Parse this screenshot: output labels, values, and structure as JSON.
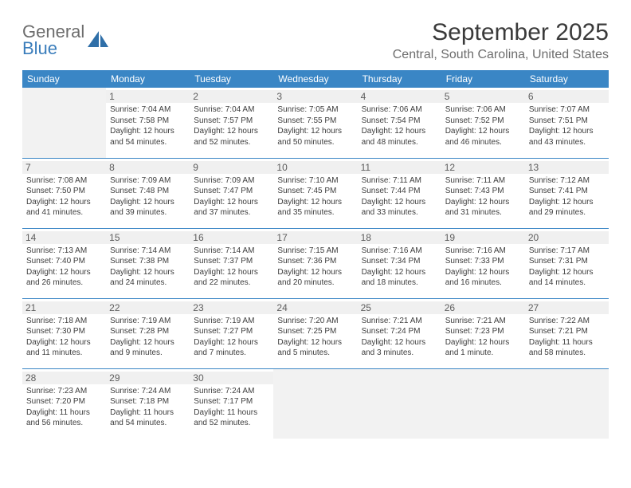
{
  "brand": {
    "word1": "General",
    "word2": "Blue"
  },
  "title": "September 2025",
  "location": "Central, South Carolina, United States",
  "colors": {
    "header_bg": "#3a86c5",
    "header_text": "#ffffff",
    "border": "#3a86c5",
    "daynum_bg": "#f0f0f0",
    "empty_bg": "#f2f2f2",
    "brand_gray": "#6d6d6d",
    "brand_blue": "#3a7dbb"
  },
  "weekdays": [
    "Sunday",
    "Monday",
    "Tuesday",
    "Wednesday",
    "Thursday",
    "Friday",
    "Saturday"
  ],
  "start_offset": 1,
  "days": [
    {
      "n": "1",
      "sr": "7:04 AM",
      "ss": "7:58 PM",
      "dl": "12 hours and 54 minutes."
    },
    {
      "n": "2",
      "sr": "7:04 AM",
      "ss": "7:57 PM",
      "dl": "12 hours and 52 minutes."
    },
    {
      "n": "3",
      "sr": "7:05 AM",
      "ss": "7:55 PM",
      "dl": "12 hours and 50 minutes."
    },
    {
      "n": "4",
      "sr": "7:06 AM",
      "ss": "7:54 PM",
      "dl": "12 hours and 48 minutes."
    },
    {
      "n": "5",
      "sr": "7:06 AM",
      "ss": "7:52 PM",
      "dl": "12 hours and 46 minutes."
    },
    {
      "n": "6",
      "sr": "7:07 AM",
      "ss": "7:51 PM",
      "dl": "12 hours and 43 minutes."
    },
    {
      "n": "7",
      "sr": "7:08 AM",
      "ss": "7:50 PM",
      "dl": "12 hours and 41 minutes."
    },
    {
      "n": "8",
      "sr": "7:09 AM",
      "ss": "7:48 PM",
      "dl": "12 hours and 39 minutes."
    },
    {
      "n": "9",
      "sr": "7:09 AM",
      "ss": "7:47 PM",
      "dl": "12 hours and 37 minutes."
    },
    {
      "n": "10",
      "sr": "7:10 AM",
      "ss": "7:45 PM",
      "dl": "12 hours and 35 minutes."
    },
    {
      "n": "11",
      "sr": "7:11 AM",
      "ss": "7:44 PM",
      "dl": "12 hours and 33 minutes."
    },
    {
      "n": "12",
      "sr": "7:11 AM",
      "ss": "7:43 PM",
      "dl": "12 hours and 31 minutes."
    },
    {
      "n": "13",
      "sr": "7:12 AM",
      "ss": "7:41 PM",
      "dl": "12 hours and 29 minutes."
    },
    {
      "n": "14",
      "sr": "7:13 AM",
      "ss": "7:40 PM",
      "dl": "12 hours and 26 minutes."
    },
    {
      "n": "15",
      "sr": "7:14 AM",
      "ss": "7:38 PM",
      "dl": "12 hours and 24 minutes."
    },
    {
      "n": "16",
      "sr": "7:14 AM",
      "ss": "7:37 PM",
      "dl": "12 hours and 22 minutes."
    },
    {
      "n": "17",
      "sr": "7:15 AM",
      "ss": "7:36 PM",
      "dl": "12 hours and 20 minutes."
    },
    {
      "n": "18",
      "sr": "7:16 AM",
      "ss": "7:34 PM",
      "dl": "12 hours and 18 minutes."
    },
    {
      "n": "19",
      "sr": "7:16 AM",
      "ss": "7:33 PM",
      "dl": "12 hours and 16 minutes."
    },
    {
      "n": "20",
      "sr": "7:17 AM",
      "ss": "7:31 PM",
      "dl": "12 hours and 14 minutes."
    },
    {
      "n": "21",
      "sr": "7:18 AM",
      "ss": "7:30 PM",
      "dl": "12 hours and 11 minutes."
    },
    {
      "n": "22",
      "sr": "7:19 AM",
      "ss": "7:28 PM",
      "dl": "12 hours and 9 minutes."
    },
    {
      "n": "23",
      "sr": "7:19 AM",
      "ss": "7:27 PM",
      "dl": "12 hours and 7 minutes."
    },
    {
      "n": "24",
      "sr": "7:20 AM",
      "ss": "7:25 PM",
      "dl": "12 hours and 5 minutes."
    },
    {
      "n": "25",
      "sr": "7:21 AM",
      "ss": "7:24 PM",
      "dl": "12 hours and 3 minutes."
    },
    {
      "n": "26",
      "sr": "7:21 AM",
      "ss": "7:23 PM",
      "dl": "12 hours and 1 minute."
    },
    {
      "n": "27",
      "sr": "7:22 AM",
      "ss": "7:21 PM",
      "dl": "11 hours and 58 minutes."
    },
    {
      "n": "28",
      "sr": "7:23 AM",
      "ss": "7:20 PM",
      "dl": "11 hours and 56 minutes."
    },
    {
      "n": "29",
      "sr": "7:24 AM",
      "ss": "7:18 PM",
      "dl": "11 hours and 54 minutes."
    },
    {
      "n": "30",
      "sr": "7:24 AM",
      "ss": "7:17 PM",
      "dl": "11 hours and 52 minutes."
    }
  ],
  "labels": {
    "sunrise": "Sunrise:",
    "sunset": "Sunset:",
    "daylight": "Daylight:"
  }
}
